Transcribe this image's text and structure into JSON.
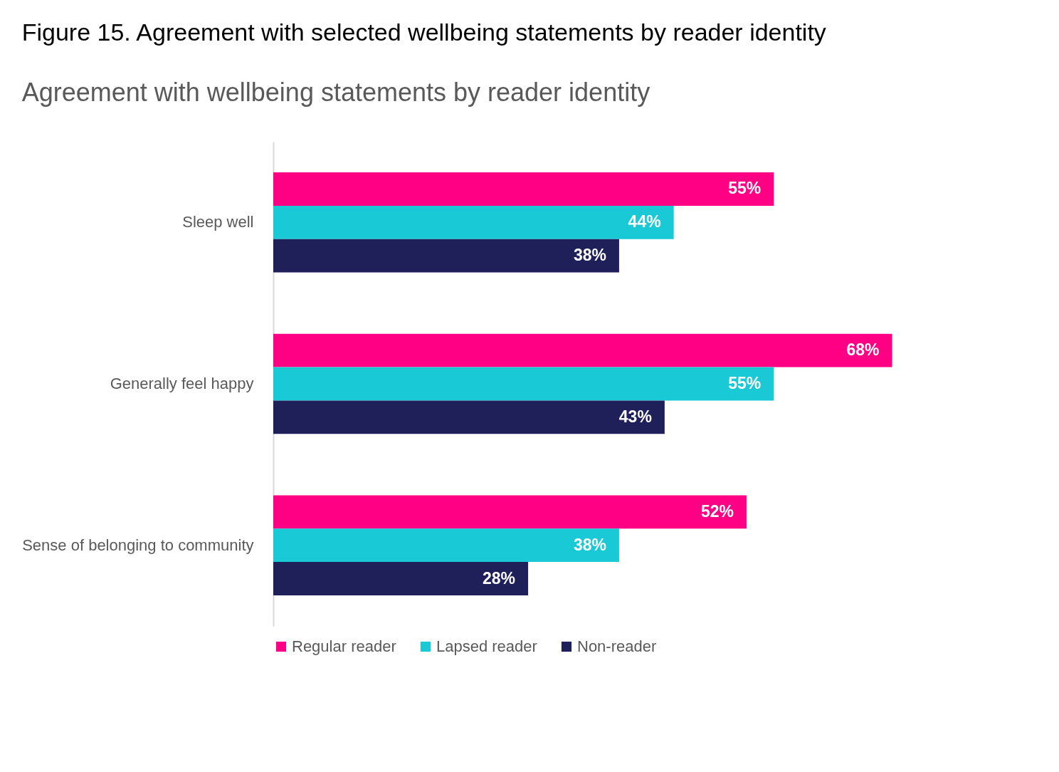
{
  "chart_data": {
    "type": "bar",
    "orientation": "horizontal",
    "title": "Figure 15. Agreement with selected wellbeing statements by reader identity",
    "subtitle": "Agreement with wellbeing statements by reader identity",
    "categories": [
      "Sleep well",
      "Generally feel happy",
      "Sense of belonging to community"
    ],
    "series": [
      {
        "name": "Regular reader",
        "color": "#ff0084",
        "values": [
          55,
          68,
          52
        ],
        "value_labels": [
          "55%",
          "68%",
          "52%"
        ]
      },
      {
        "name": "Lapsed reader",
        "color": "#1ac9d6",
        "values": [
          44,
          55,
          38
        ],
        "value_labels": [
          "44%",
          "55%",
          "38%"
        ]
      },
      {
        "name": "Non-reader",
        "color": "#1f1f5a",
        "values": [
          38,
          43,
          28
        ],
        "value_labels": [
          "38%",
          "43%",
          "28%"
        ]
      }
    ],
    "legend": "bottom",
    "grid": false
  }
}
